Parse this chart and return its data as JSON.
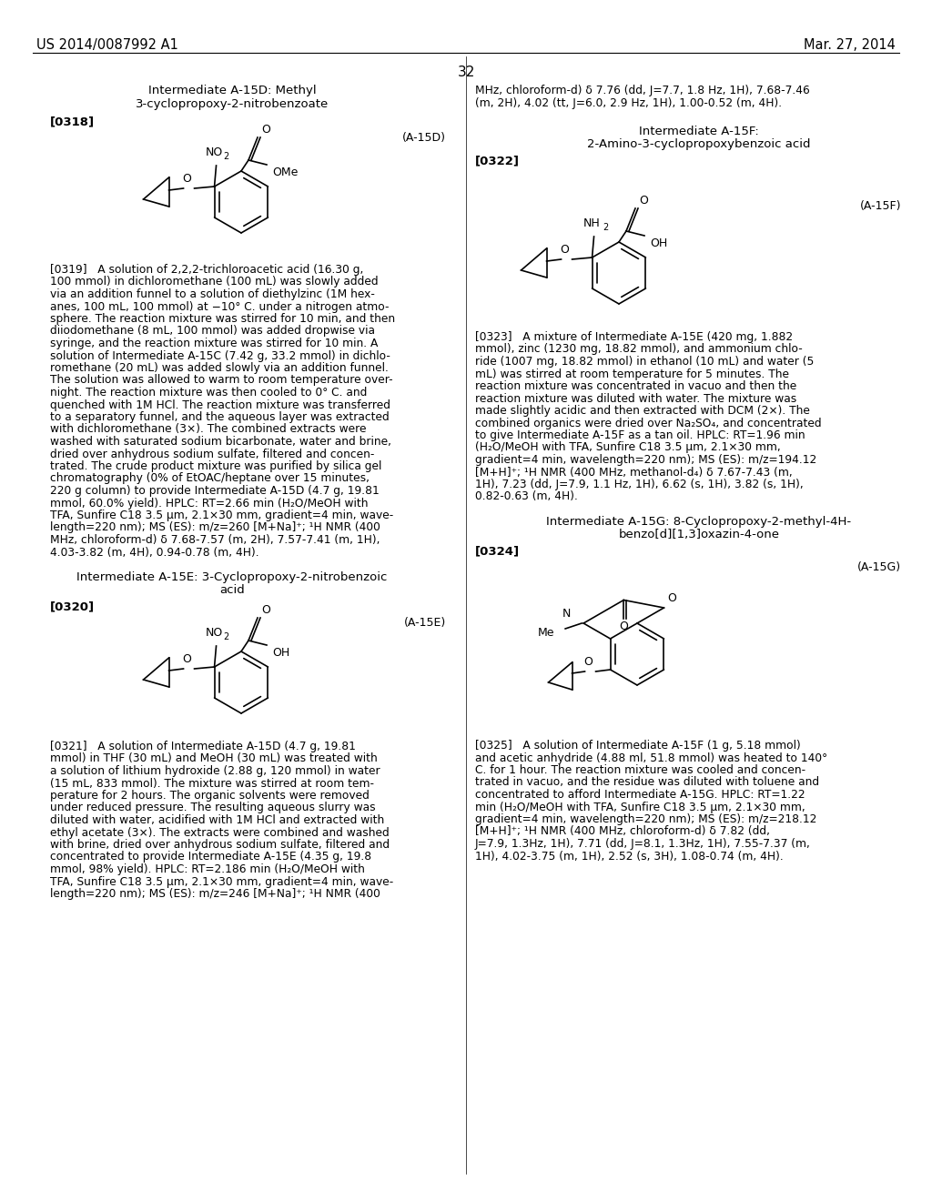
{
  "background_color": "#ffffff",
  "header_left": "US 2014/0087992 A1",
  "header_right": "Mar. 27, 2014",
  "page_number": "32"
}
